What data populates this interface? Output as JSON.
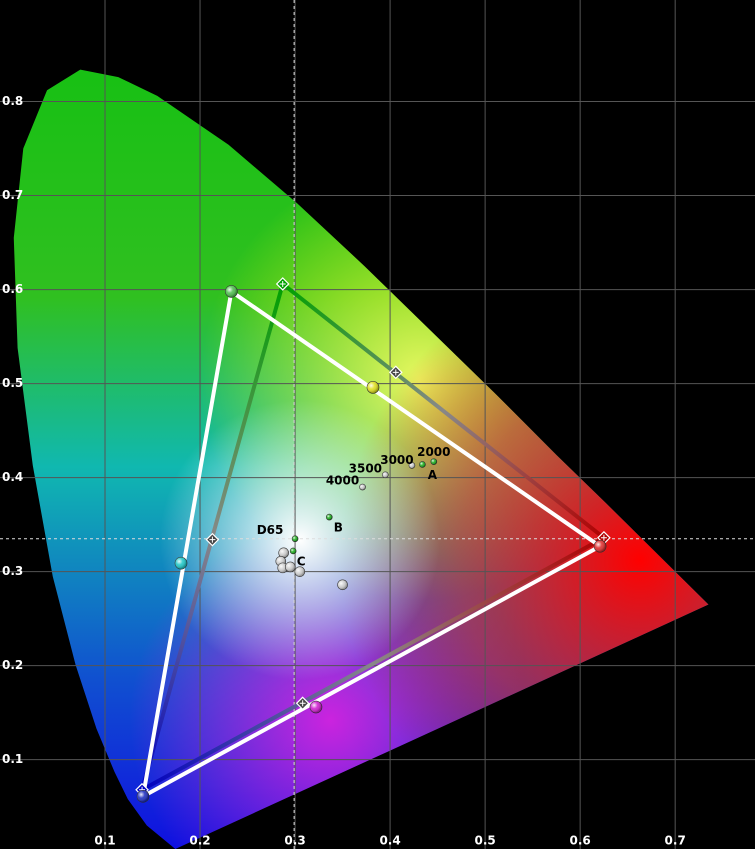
{
  "chart_data": {
    "type": "chromaticity",
    "xlim": [
      -0.0105,
      0.784
    ],
    "ylim": [
      0.005,
      0.908
    ],
    "xticks": [
      0.1,
      0.2,
      0.3,
      0.4,
      0.5,
      0.6,
      0.7
    ],
    "yticks": [
      0.1,
      0.2,
      0.3,
      0.4,
      0.5,
      0.6,
      0.7,
      0.8
    ],
    "grid": true,
    "locus": {
      "x": [
        0.174,
        0.144,
        0.124,
        0.11,
        0.091,
        0.069,
        0.045,
        0.024,
        0.008,
        0.004,
        0.014,
        0.039,
        0.074,
        0.114,
        0.155,
        0.23,
        0.302,
        0.373,
        0.444,
        0.513,
        0.575,
        0.627,
        0.692,
        0.735
      ],
      "y": [
        0.005,
        0.03,
        0.058,
        0.087,
        0.133,
        0.201,
        0.295,
        0.413,
        0.538,
        0.655,
        0.75,
        0.812,
        0.834,
        0.826,
        0.806,
        0.754,
        0.692,
        0.625,
        0.555,
        0.487,
        0.424,
        0.373,
        0.308,
        0.265
      ]
    },
    "reference_gamut": {
      "x": [
        0.625,
        0.287,
        0.139
      ],
      "y": [
        0.336,
        0.606,
        0.068
      ],
      "colors": [
        "#b00000",
        "#00a000",
        "#0000c0"
      ]
    },
    "measured_gamut": {
      "x": [
        0.621,
        0.233,
        0.14
      ],
      "y": [
        0.327,
        0.598,
        0.061
      ],
      "colors": [
        "#e03030",
        "#50c050",
        "#2030c0"
      ],
      "line_color": "#ffffff"
    },
    "secondary_targets": {
      "x": [
        0.213,
        0.308,
        0.406
      ],
      "y": [
        0.334,
        0.16,
        0.512
      ]
    },
    "secondary_measured": {
      "x": [
        0.18,
        0.322,
        0.382
      ],
      "y": [
        0.309,
        0.156,
        0.496
      ],
      "colors": [
        "#20c8c8",
        "#d020d0",
        "#e0e020"
      ]
    },
    "white_point": {
      "x": 0.299,
      "y": 0.335
    },
    "reference_points": {
      "labels": [
        "D65",
        "C",
        "B",
        "A",
        "2000",
        "3000",
        "3500",
        "4000"
      ],
      "x": [
        0.3,
        0.298,
        0.336,
        0.434,
        0.446,
        0.423,
        0.395,
        0.371
      ],
      "y": [
        0.335,
        0.322,
        0.358,
        0.414,
        0.417,
        0.413,
        0.403,
        0.39
      ],
      "colors": [
        "#20b020",
        "#20b020",
        "#20b020",
        "#20b020",
        "#20b020",
        "#cccccc",
        "#cccccc",
        "#cccccc"
      ]
    },
    "grayscale": {
      "x": [
        0.288,
        0.285,
        0.287,
        0.295,
        0.305,
        0.35
      ],
      "y": [
        0.32,
        0.311,
        0.304,
        0.305,
        0.3,
        0.286
      ],
      "color": "#d0d0d0"
    }
  }
}
